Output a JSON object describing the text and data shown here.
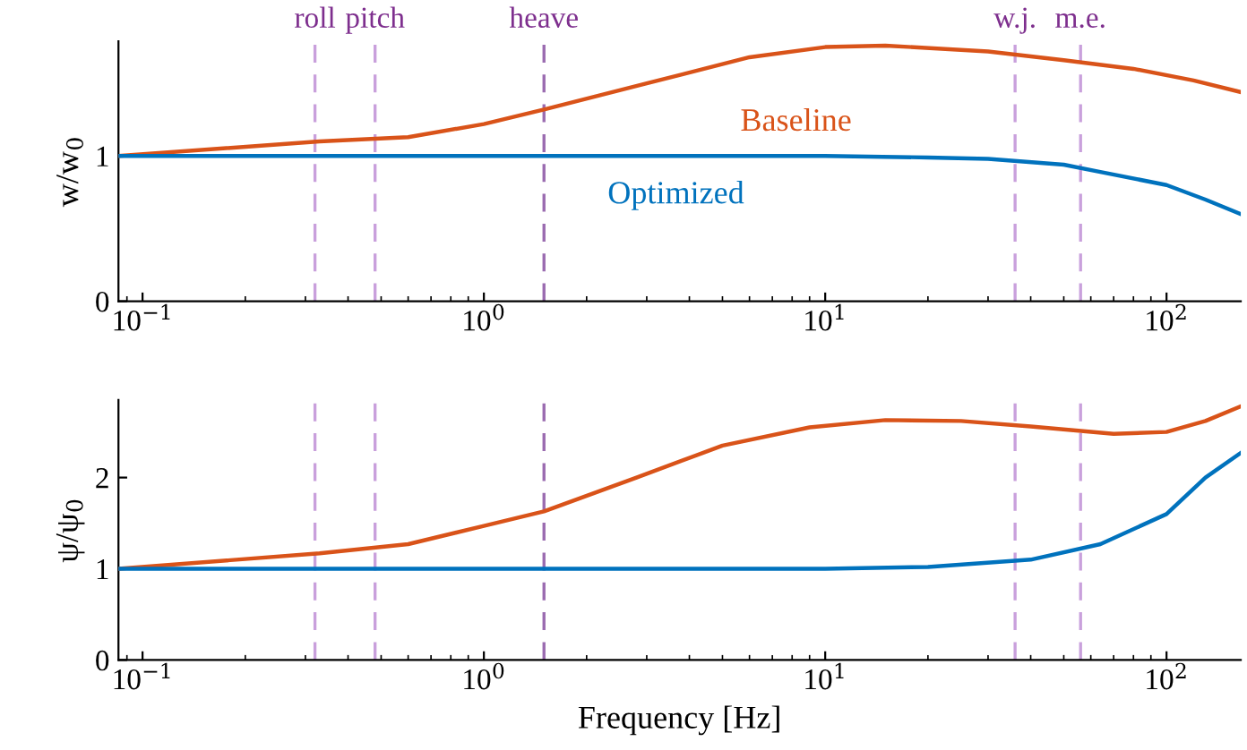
{
  "chart_data": [
    {
      "type": "line",
      "ylabel": "w/w$_{0}$",
      "log": "x",
      "xlim": [
        0.085,
        165
      ],
      "ylim": [
        0,
        1.79
      ],
      "xticks": [
        {
          "value": 0.1,
          "label": "10$^{−1}$"
        },
        {
          "value": 1,
          "label": "10$^{0}$"
        },
        {
          "value": 10,
          "label": "10$^{1}$"
        },
        {
          "value": 100,
          "label": "10$^{2}$"
        }
      ],
      "yticks": [
        0,
        1
      ],
      "grid": false,
      "legend": false,
      "line_style": "solid",
      "marker": "none",
      "series": [
        {
          "name": "Baseline",
          "color": "#d95319",
          "x": [
            0.085,
            0.33,
            0.6,
            1.0,
            1.5,
            3,
            6,
            10,
            15,
            30,
            50,
            80,
            120,
            165
          ],
          "values": [
            1.0,
            1.1,
            1.13,
            1.22,
            1.32,
            1.5,
            1.68,
            1.75,
            1.76,
            1.72,
            1.66,
            1.6,
            1.52,
            1.44
          ]
        },
        {
          "name": "Optimized",
          "color": "#0072bd",
          "x": [
            0.085,
            1,
            10,
            20,
            30,
            50,
            64,
            100,
            130,
            165
          ],
          "values": [
            1.0,
            1.0,
            1.0,
            0.99,
            0.98,
            0.94,
            0.89,
            0.8,
            0.7,
            0.6
          ]
        }
      ],
      "ref_lines": [
        {
          "axis": "x",
          "value": 0.32,
          "label": "roll",
          "color": "#c9a0dc",
          "line_style": "dashed"
        },
        {
          "axis": "x",
          "value": 0.48,
          "label": "pitch",
          "color": "#c9a0dc",
          "line_style": "dashed"
        },
        {
          "axis": "x",
          "value": 1.5,
          "label": "heave",
          "color": "#9a6bb0",
          "line_style": "dashed"
        },
        {
          "axis": "x",
          "value": 36,
          "label": "w.j.",
          "color": "#c9a0dc",
          "line_style": "dashed"
        },
        {
          "axis": "x",
          "value": 56,
          "label": "m.e.",
          "color": "#c9a0dc",
          "line_style": "dashed"
        }
      ]
    },
    {
      "type": "line",
      "ylabel": "ψ/ψ$_{0}$",
      "xlabel": "Frequency [Hz]",
      "log": "x",
      "xlim": [
        0.085,
        165
      ],
      "ylim": [
        0,
        2.85
      ],
      "xticks": [
        {
          "value": 0.1,
          "label": "10$^{−1}$"
        },
        {
          "value": 1,
          "label": "10$^{0}$"
        },
        {
          "value": 10,
          "label": "10$^{1}$"
        },
        {
          "value": 100,
          "label": "10$^{2}$"
        }
      ],
      "yticks": [
        0,
        1,
        2
      ],
      "grid": false,
      "legend": false,
      "line_style": "solid",
      "marker": "none",
      "series": [
        {
          "color": "#d95319",
          "x": [
            0.085,
            0.33,
            0.6,
            1.0,
            1.5,
            2.8,
            5,
            9,
            15,
            25,
            40,
            70,
            100,
            130,
            165
          ],
          "values": [
            1.0,
            1.17,
            1.27,
            1.47,
            1.63,
            2.0,
            2.35,
            2.55,
            2.63,
            2.62,
            2.56,
            2.48,
            2.5,
            2.62,
            2.78
          ]
        },
        {
          "color": "#0072bd",
          "x": [
            0.085,
            1,
            10,
            20,
            40,
            64,
            100,
            130,
            165
          ],
          "values": [
            1.0,
            1.0,
            1.0,
            1.02,
            1.1,
            1.27,
            1.6,
            2.0,
            2.27
          ]
        }
      ],
      "ref_lines": [
        {
          "axis": "x",
          "value": 0.32,
          "color": "#c9a0dc",
          "line_style": "dashed"
        },
        {
          "axis": "x",
          "value": 0.48,
          "color": "#c9a0dc",
          "line_style": "dashed"
        },
        {
          "axis": "x",
          "value": 1.5,
          "color": "#9a6bb0",
          "line_style": "dashed"
        },
        {
          "axis": "x",
          "value": 36,
          "color": "#c9a0dc",
          "line_style": "dashed"
        },
        {
          "axis": "x",
          "value": 56,
          "color": "#c9a0dc",
          "line_style": "dashed"
        }
      ]
    }
  ]
}
